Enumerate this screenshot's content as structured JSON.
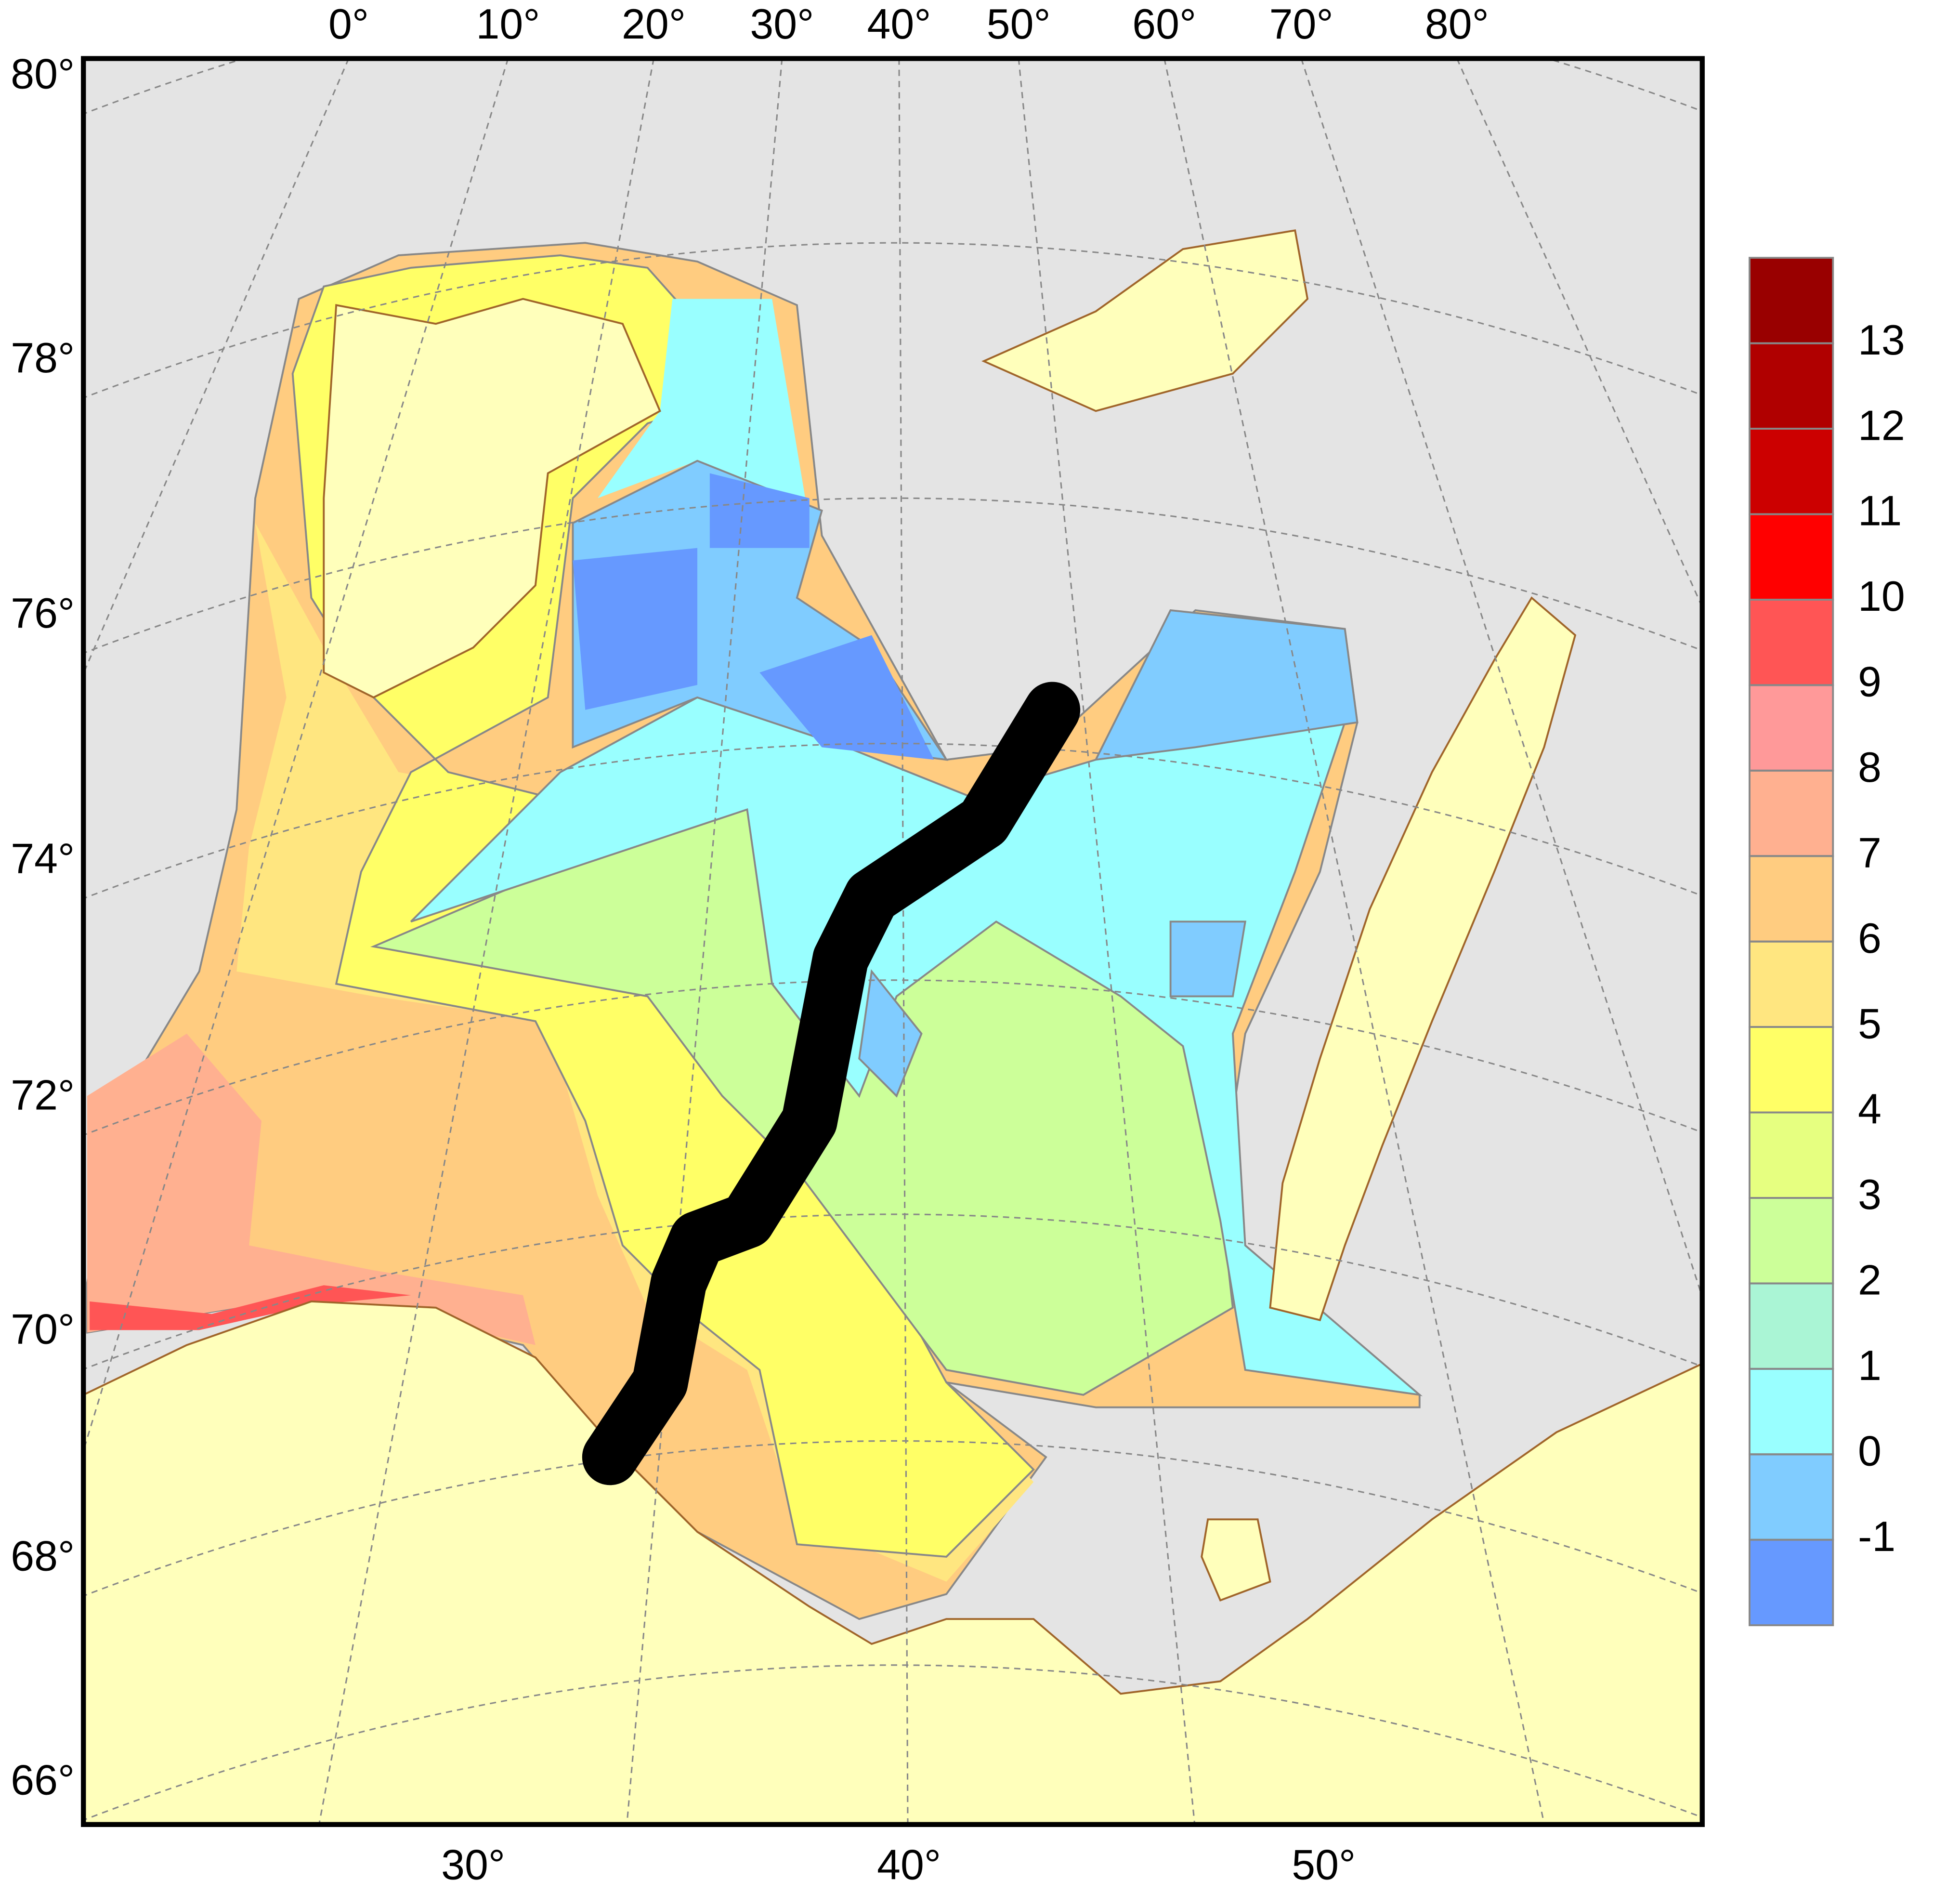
{
  "map": {
    "lat_labels": [
      "80°",
      "78°",
      "76°",
      "74°",
      "72°",
      "70°",
      "68°",
      "66°"
    ],
    "top_lon_labels": [
      "0°",
      "10°",
      "20°",
      "30°",
      "40°",
      "50°",
      "60°",
      "70°",
      "80°"
    ],
    "bottom_lon_labels": [
      "30°",
      "40°",
      "50°"
    ]
  },
  "legend": {
    "ticks": [
      -1,
      0,
      1,
      2,
      3,
      4,
      5,
      6,
      7,
      8,
      9,
      10,
      11,
      12,
      13
    ],
    "colors": [
      "#6699ff",
      "#80ccff",
      "#99ffff",
      "#aaf5d5",
      "#ccff99",
      "#e6ff80",
      "#ffff66",
      "#ffe680",
      "#ffcc80",
      "#ffb090",
      "#ff9999",
      "#ff5555",
      "#ff0000",
      "#cc0000",
      "#b00000",
      "#990000"
    ]
  }
}
